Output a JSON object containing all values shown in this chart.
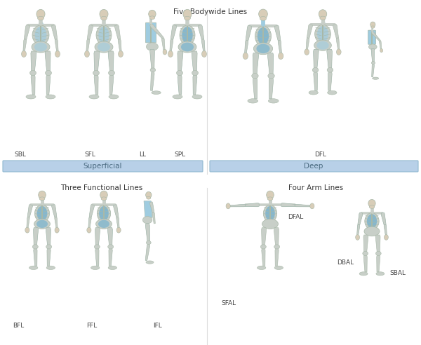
{
  "title_top": "Five Bodywide Lines",
  "title_bottom_left": "Three Functional Lines",
  "title_bottom_right": "Four Arm Lines",
  "superficial_label": "Superficial",
  "deep_label": "Deep",
  "background_color": "#ffffff",
  "bar_color": "#b8d0e8",
  "bar_text_color": "#4a6a80",
  "label_color": "#444444",
  "bone_color": "#c8cfc8",
  "bone_edge": "#a8b8a8",
  "muscle_blue": "#6aaed0",
  "muscle_light": "#9fcce0",
  "skin_color": "#d8cdb8",
  "title_fontsize": 7.5,
  "label_fontsize": 6.5,
  "bar_fontsize": 7.5
}
